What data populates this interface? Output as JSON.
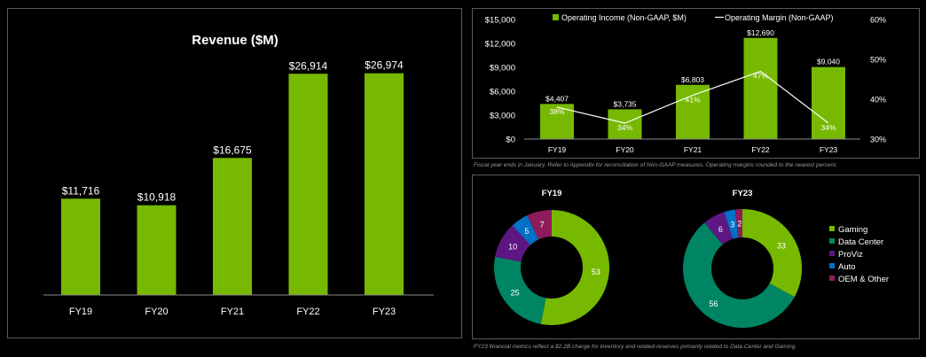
{
  "colors": {
    "green": "#76b900",
    "teal": "#008564",
    "purple": "#5d1682",
    "blue": "#0071c5",
    "magenta": "#8c1c5b",
    "text": "#ffffff",
    "axis": "#a0a0a0"
  },
  "chart_data": [
    {
      "id": "revenue",
      "type": "bar",
      "title": "Revenue ($M)",
      "categories": [
        "FY19",
        "FY20",
        "FY21",
        "FY22",
        "FY23"
      ],
      "values": [
        11716,
        10918,
        16675,
        26914,
        26974
      ],
      "value_labels": [
        "$11,716",
        "$10,918",
        "$16,675",
        "$26,914",
        "$26,974"
      ],
      "ylim": [
        0,
        30500
      ],
      "grid": false
    },
    {
      "id": "operating",
      "type": "bar+line",
      "categories": [
        "FY19",
        "FY20",
        "FY21",
        "FY22",
        "FY23"
      ],
      "series": [
        {
          "name": "Operating Income (Non-GAAP, $M)",
          "type": "bar",
          "axis": "left",
          "values": [
            4407,
            3735,
            6803,
            12690,
            9040
          ],
          "value_labels": [
            "$4,407",
            "$3,735",
            "$6,803",
            "$12,690",
            "$9,040"
          ]
        },
        {
          "name": "Operating Margin (Non-GAAP)",
          "type": "line",
          "axis": "right",
          "values": [
            38,
            34,
            41,
            47,
            34
          ],
          "value_labels": [
            "38%",
            "34%",
            "41%",
            "47%",
            "34%"
          ]
        }
      ],
      "y_left": {
        "lim": [
          0,
          15000
        ],
        "ticks": [
          "$0",
          "$3,000",
          "$6,000",
          "$9,000",
          "$12,000",
          "$15,000"
        ]
      },
      "y_right": {
        "lim": [
          30,
          60
        ],
        "ticks": [
          "30%",
          "40%",
          "50%",
          "60%"
        ]
      },
      "legend": "top"
    },
    {
      "id": "mix",
      "type": "donut",
      "categories": [
        "Gaming",
        "Data Center",
        "ProViz",
        "Auto",
        "OEM & Other"
      ],
      "charts": [
        {
          "title": "FY19",
          "values": [
            53,
            25,
            10,
            5,
            7
          ]
        },
        {
          "title": "FY23",
          "values": [
            33,
            56,
            6,
            3,
            2
          ]
        }
      ],
      "legend": "right"
    }
  ],
  "footnotes": {
    "operating": "Fiscal year ends in January. Refer to Appendix for reconciliation of Non-GAAP measures. Operating margins rounded to the nearest percent.",
    "mix": "FY23 financial metrics reflect a $2.2B charge for inventory and related reserves primarily related to Data Center and Gaming."
  }
}
